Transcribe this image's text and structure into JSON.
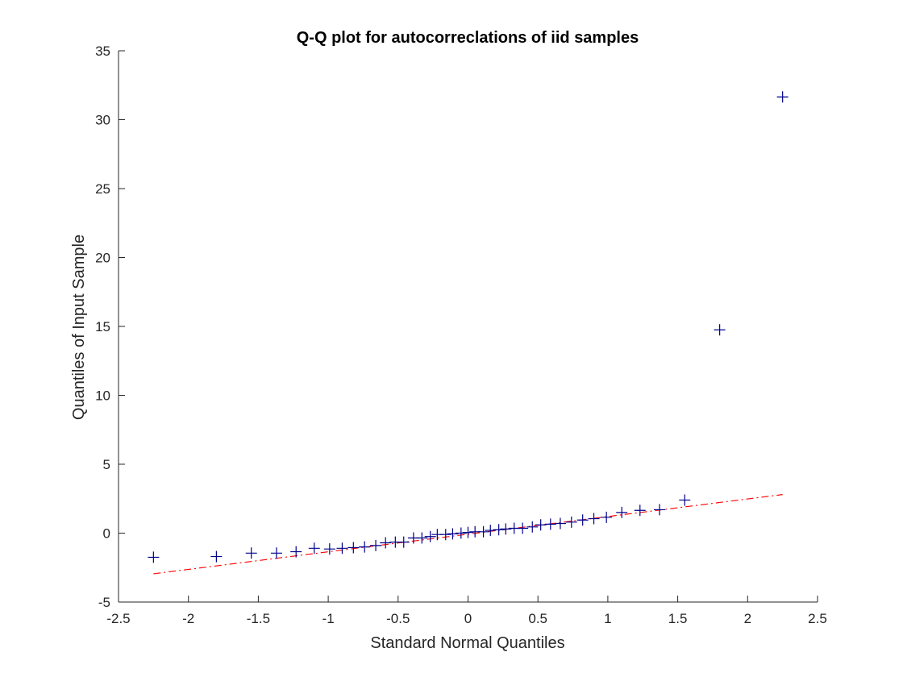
{
  "chart_data": {
    "type": "scatter",
    "title": "Q-Q plot for autocorreclations of iid samples",
    "xlabel": "Standard Normal Quantiles",
    "ylabel": "Quantiles of Input Sample",
    "xlim": [
      -2.5,
      2.5
    ],
    "ylim": [
      -5,
      35
    ],
    "xticks": [
      -2.5,
      -2,
      -1.5,
      -1,
      -0.5,
      0,
      0.5,
      1,
      1.5,
      2,
      2.5
    ],
    "xtick_labels": [
      "-2.5",
      "-2",
      "-1.5",
      "-1",
      "-0.5",
      "0",
      "0.5",
      "1",
      "1.5",
      "2",
      "2.5"
    ],
    "yticks": [
      -5,
      0,
      5,
      10,
      15,
      20,
      25,
      30,
      35
    ],
    "ytick_labels": [
      "-5",
      "0",
      "5",
      "10",
      "15",
      "20",
      "25",
      "30",
      "35"
    ],
    "grid": false,
    "legend": "none",
    "colors": {
      "points": "#00008b",
      "reference_line": "#ff0000",
      "axes": "#262626"
    },
    "series": [
      {
        "marker": "+",
        "points": [
          {
            "x": -2.25,
            "y": -1.75
          },
          {
            "x": -1.8,
            "y": -1.7
          },
          {
            "x": -1.55,
            "y": -1.45
          },
          {
            "x": -1.37,
            "y": -1.45
          },
          {
            "x": -1.23,
            "y": -1.35
          },
          {
            "x": -1.1,
            "y": -1.1
          },
          {
            "x": -0.99,
            "y": -1.15
          },
          {
            "x": -0.9,
            "y": -1.1
          },
          {
            "x": -0.82,
            "y": -1.05
          },
          {
            "x": -0.74,
            "y": -1.0
          },
          {
            "x": -0.66,
            "y": -0.9
          },
          {
            "x": -0.59,
            "y": -0.7
          },
          {
            "x": -0.52,
            "y": -0.65
          },
          {
            "x": -0.46,
            "y": -0.65
          },
          {
            "x": -0.39,
            "y": -0.35
          },
          {
            "x": -0.33,
            "y": -0.35
          },
          {
            "x": -0.27,
            "y": -0.25
          },
          {
            "x": -0.22,
            "y": -0.1
          },
          {
            "x": -0.16,
            "y": -0.1
          },
          {
            "x": -0.11,
            "y": -0.05
          },
          {
            "x": -0.05,
            "y": 0.0
          },
          {
            "x": 0.0,
            "y": 0.05
          },
          {
            "x": 0.05,
            "y": 0.1
          },
          {
            "x": 0.11,
            "y": 0.1
          },
          {
            "x": 0.16,
            "y": 0.2
          },
          {
            "x": 0.22,
            "y": 0.25
          },
          {
            "x": 0.27,
            "y": 0.3
          },
          {
            "x": 0.33,
            "y": 0.35
          },
          {
            "x": 0.39,
            "y": 0.35
          },
          {
            "x": 0.46,
            "y": 0.45
          },
          {
            "x": 0.52,
            "y": 0.6
          },
          {
            "x": 0.59,
            "y": 0.65
          },
          {
            "x": 0.66,
            "y": 0.7
          },
          {
            "x": 0.74,
            "y": 0.8
          },
          {
            "x": 0.82,
            "y": 0.95
          },
          {
            "x": 0.9,
            "y": 1.05
          },
          {
            "x": 0.99,
            "y": 1.15
          },
          {
            "x": 1.1,
            "y": 1.5
          },
          {
            "x": 1.23,
            "y": 1.65
          },
          {
            "x": 1.37,
            "y": 1.7
          },
          {
            "x": 1.55,
            "y": 2.4
          },
          {
            "x": 1.8,
            "y": 14.75
          },
          {
            "x": 2.25,
            "y": 31.65
          }
        ]
      }
    ],
    "reference_line": {
      "style": "dash-dot",
      "x": [
        -2.25,
        2.25
      ],
      "y": [
        -2.95,
        2.8
      ]
    }
  }
}
